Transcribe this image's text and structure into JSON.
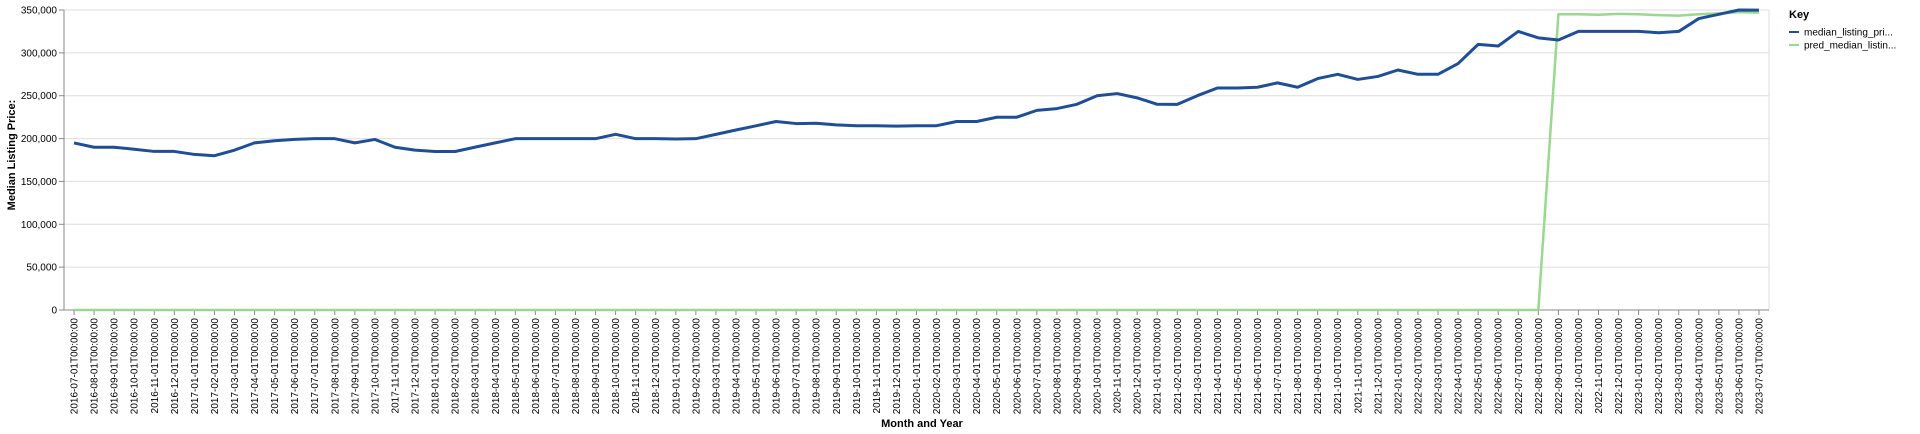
{
  "chart_data": {
    "type": "line",
    "xlabel": "Month and Year",
    "ylabel": "Median Listing Price:",
    "ylim": [
      0,
      350000
    ],
    "yticks": [
      0,
      50000,
      100000,
      150000,
      200000,
      250000,
      300000,
      350000
    ],
    "ytick_labels": [
      "0",
      "50,000",
      "100,000",
      "150,000",
      "200,000",
      "250,000",
      "300,000",
      "350,000"
    ],
    "grid": true,
    "legend": {
      "title": "Key",
      "placement": "top-right",
      "entries": [
        "median_listing_pri...",
        "pred_median_listin..."
      ]
    },
    "x": [
      "2016-07-01T00:00:00",
      "2016-08-01T00:00:00",
      "2016-09-01T00:00:00",
      "2016-10-01T00:00:00",
      "2016-11-01T00:00:00",
      "2016-12-01T00:00:00",
      "2017-01-01T00:00:00",
      "2017-02-01T00:00:00",
      "2017-03-01T00:00:00",
      "2017-04-01T00:00:00",
      "2017-05-01T00:00:00",
      "2017-06-01T00:00:00",
      "2017-07-01T00:00:00",
      "2017-08-01T00:00:00",
      "2017-09-01T00:00:00",
      "2017-10-01T00:00:00",
      "2017-11-01T00:00:00",
      "2017-12-01T00:00:00",
      "2018-01-01T00:00:00",
      "2018-02-01T00:00:00",
      "2018-03-01T00:00:00",
      "2018-04-01T00:00:00",
      "2018-05-01T00:00:00",
      "2018-06-01T00:00:00",
      "2018-07-01T00:00:00",
      "2018-08-01T00:00:00",
      "2018-09-01T00:00:00",
      "2018-10-01T00:00:00",
      "2018-11-01T00:00:00",
      "2018-12-01T00:00:00",
      "2019-01-01T00:00:00",
      "2019-02-01T00:00:00",
      "2019-03-01T00:00:00",
      "2019-04-01T00:00:00",
      "2019-05-01T00:00:00",
      "2019-06-01T00:00:00",
      "2019-07-01T00:00:00",
      "2019-08-01T00:00:00",
      "2019-09-01T00:00:00",
      "2019-10-01T00:00:00",
      "2019-11-01T00:00:00",
      "2019-12-01T00:00:00",
      "2020-01-01T00:00:00",
      "2020-02-01T00:00:00",
      "2020-03-01T00:00:00",
      "2020-04-01T00:00:00",
      "2020-05-01T00:00:00",
      "2020-06-01T00:00:00",
      "2020-07-01T00:00:00",
      "2020-08-01T00:00:00",
      "2020-09-01T00:00:00",
      "2020-10-01T00:00:00",
      "2020-11-01T00:00:00",
      "2020-12-01T00:00:00",
      "2021-01-01T00:00:00",
      "2021-02-01T00:00:00",
      "2021-03-01T00:00:00",
      "2021-04-01T00:00:00",
      "2021-05-01T00:00:00",
      "2021-06-01T00:00:00",
      "2021-07-01T00:00:00",
      "2021-08-01T00:00:00",
      "2021-09-01T00:00:00",
      "2021-10-01T00:00:00",
      "2021-11-01T00:00:00",
      "2021-12-01T00:00:00",
      "2022-01-01T00:00:00",
      "2022-02-01T00:00:00",
      "2022-03-01T00:00:00",
      "2022-04-01T00:00:00",
      "2022-05-01T00:00:00",
      "2022-06-01T00:00:00",
      "2022-07-01T00:00:00",
      "2022-08-01T00:00:00",
      "2022-09-01T00:00:00",
      "2022-10-01T00:00:00",
      "2022-11-01T00:00:00",
      "2022-12-01T00:00:00",
      "2023-01-01T00:00:00",
      "2023-02-01T00:00:00",
      "2023-03-01T00:00:00",
      "2023-04-01T00:00:00",
      "2023-05-01T00:00:00",
      "2023-06-01T00:00:00",
      "2023-07-01T00:00:00"
    ],
    "series": [
      {
        "name": "median_listing_pri...",
        "color": "#1f4e99",
        "values": [
          194900,
          189900,
          189900,
          187500,
          185000,
          185000,
          181500,
          180000,
          186500,
          195000,
          197500,
          199000,
          200000,
          199900,
          195000,
          199000,
          189900,
          186500,
          184900,
          184900,
          190000,
          195000,
          199900,
          199900,
          199900,
          199900,
          199900,
          205000,
          199900,
          199900,
          199500,
          199900,
          204900,
          210000,
          214900,
          219900,
          217500,
          217900,
          216000,
          214900,
          214900,
          214500,
          214900,
          215000,
          219900,
          219900,
          224900,
          224900,
          232900,
          235000,
          240000,
          250000,
          252500,
          247500,
          240000,
          239900,
          250000,
          259000,
          259000,
          259900,
          265000,
          259900,
          270000,
          275000,
          269000,
          272500,
          280000,
          275000,
          275000,
          287500,
          309900,
          308000,
          325000,
          317500,
          315000,
          325000,
          325000,
          325000,
          325000,
          323500,
          325000,
          340000,
          345000,
          350000,
          349900
        ]
      },
      {
        "name": "pred_median_listin...",
        "color": "#98d98e",
        "values": [
          0,
          0,
          0,
          0,
          0,
          0,
          0,
          0,
          0,
          0,
          0,
          0,
          0,
          0,
          0,
          0,
          0,
          0,
          0,
          0,
          0,
          0,
          0,
          0,
          0,
          0,
          0,
          0,
          0,
          0,
          0,
          0,
          0,
          0,
          0,
          0,
          0,
          0,
          0,
          0,
          0,
          0,
          0,
          0,
          0,
          0,
          0,
          0,
          0,
          0,
          0,
          0,
          0,
          0,
          0,
          0,
          0,
          0,
          0,
          0,
          0,
          0,
          0,
          0,
          0,
          0,
          0,
          0,
          0,
          0,
          0,
          0,
          0,
          0,
          345000,
          345000,
          344500,
          345500,
          345000,
          344000,
          343500,
          345000,
          346000,
          347500,
          347000
        ]
      }
    ]
  }
}
